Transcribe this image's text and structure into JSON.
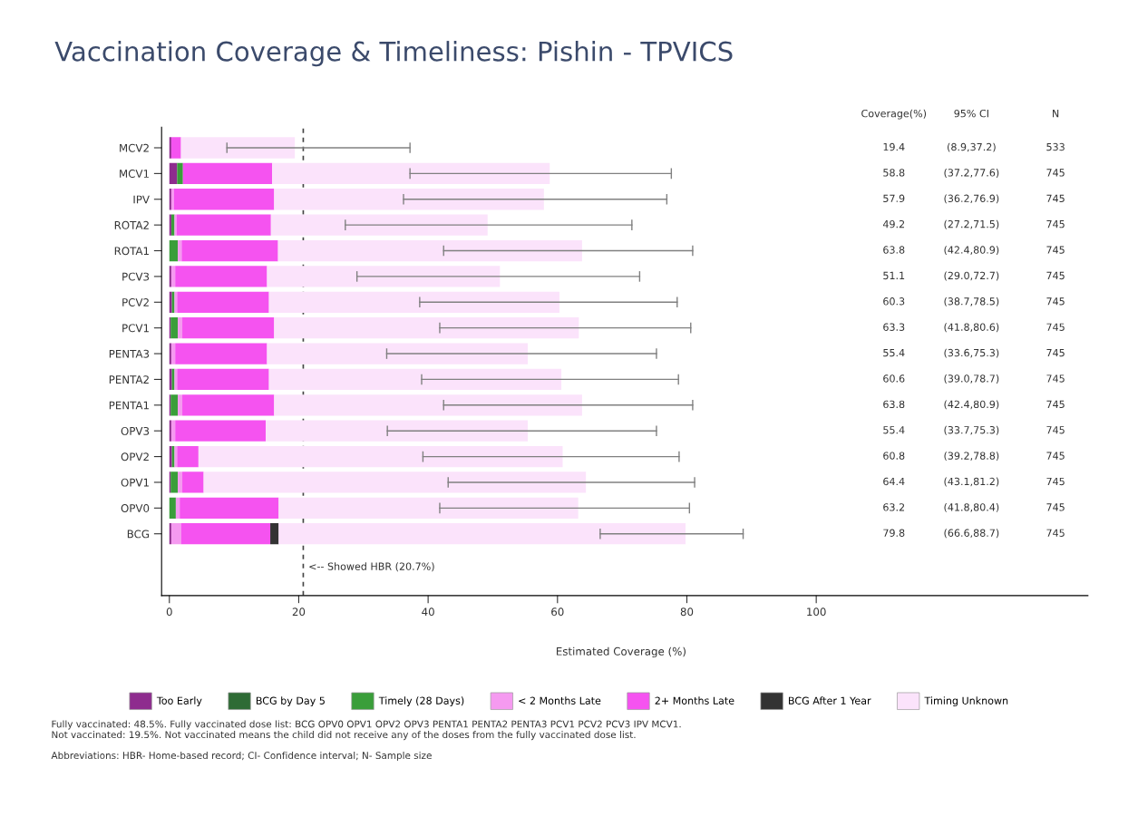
{
  "chart_data": {
    "type": "bar",
    "orientation": "horizontal",
    "stacked": true,
    "title": "Vaccination Coverage & Timeliness: Pishin - TPVICS",
    "xlabel": "Estimated Coverage (%)",
    "categories": [
      "MCV2",
      "MCV1",
      "IPV",
      "ROTA2",
      "ROTA1",
      "PCV3",
      "PCV2",
      "PCV1",
      "PENTA3",
      "PENTA2",
      "PENTA1",
      "OPV3",
      "OPV2",
      "OPV1",
      "OPV0",
      "BCG"
    ],
    "series": [
      {
        "name": "Too Early",
        "color": "#8e2c8e",
        "values": [
          0.3,
          1.2,
          0.3,
          0.3,
          0,
          0.3,
          0.4,
          0.2,
          0.3,
          0.4,
          0.2,
          0.3,
          0.4,
          0.2,
          0,
          0.3
        ]
      },
      {
        "name": "BCG by Day 5",
        "color": "#2e6b35",
        "values": [
          0,
          0,
          0,
          0,
          0,
          0,
          0,
          0,
          0,
          0,
          0,
          0,
          0,
          0,
          0,
          0
        ]
      },
      {
        "name": "Timely (28 Days)",
        "color": "#3a9e3a",
        "values": [
          0,
          0.9,
          0,
          0.5,
          1.3,
          0,
          0.4,
          1.1,
          0,
          0.4,
          1.1,
          0,
          0.4,
          1.1,
          1.0,
          0
        ]
      },
      {
        "name": "< 2 Months Late",
        "color": "#f59af0",
        "values": [
          0,
          0,
          0.4,
          0.3,
          0.6,
          0.6,
          0.4,
          0.7,
          0.6,
          0.4,
          0.7,
          0.6,
          0.4,
          0.7,
          0.6,
          1.5
        ]
      },
      {
        "name": "2+ Months Late",
        "color": "#f553f0",
        "values": [
          1.5,
          13.8,
          15.5,
          14.6,
          14.9,
          14.2,
          14.2,
          14.2,
          14.2,
          14.2,
          14.2,
          14.0,
          3.3,
          3.3,
          15.3,
          13.8
        ]
      },
      {
        "name": "BCG After 1 Year",
        "color": "#333333",
        "values": [
          0,
          0,
          0,
          0,
          0,
          0,
          0,
          0,
          0,
          0,
          0,
          0,
          0,
          0,
          0,
          1.3
        ]
      },
      {
        "name": "Timing Unknown",
        "color": "#fbe3fb",
        "values": [
          17.6,
          42.9,
          41.7,
          33.5,
          47.0,
          36.0,
          44.9,
          47.1,
          40.3,
          45.2,
          47.6,
          40.5,
          56.3,
          59.1,
          46.3,
          62.9
        ],
        "errors": [
          [
            8.9,
            37.2
          ],
          [
            37.2,
            77.6
          ],
          [
            36.2,
            76.9
          ],
          [
            27.2,
            71.5
          ],
          [
            42.4,
            80.9
          ],
          [
            29.0,
            72.7
          ],
          [
            38.7,
            78.5
          ],
          [
            41.8,
            80.6
          ],
          [
            33.6,
            75.3
          ],
          [
            39.0,
            78.7
          ],
          [
            42.4,
            80.9
          ],
          [
            33.7,
            75.3
          ],
          [
            39.2,
            78.8
          ],
          [
            43.1,
            81.2
          ],
          [
            41.8,
            80.4
          ],
          [
            66.6,
            88.7
          ]
        ]
      }
    ],
    "xlim": [
      -1.2,
      142
    ],
    "xticks": [
      0,
      20,
      40,
      60,
      80,
      100
    ],
    "grid": false,
    "legend": "bottom",
    "ref_lines": [
      {
        "axis": "x",
        "value": 20.7,
        "label": "<-- Showed HBR (20.7%)",
        "color": "#444444",
        "line_style": "dashed"
      }
    ],
    "annotations": [
      "Coverage(%)",
      "95% CI",
      "N",
      "19.4",
      "58.8",
      "57.9",
      "49.2",
      "63.8",
      "51.1",
      "60.3",
      "63.3",
      "55.4",
      "60.6",
      "63.8",
      "55.4",
      "60.8",
      "64.4",
      "63.2",
      "79.8",
      "(8.9,37.2)",
      "(37.2,77.6)",
      "(36.2,76.9)",
      "(27.2,71.5)",
      "(42.4,80.9)",
      "(29.0,72.7)",
      "(38.7,78.5)",
      "(41.8,80.6)",
      "(33.6,75.3)",
      "(39.0,78.7)",
      "(42.4,80.9)",
      "(33.7,75.3)",
      "(39.2,78.8)",
      "(43.1,81.2)",
      "(41.8,80.4)",
      "(66.6,88.7)",
      "533",
      "745",
      "745",
      "745",
      "745",
      "745",
      "745",
      "745",
      "745",
      "745",
      "745",
      "745",
      "745",
      "745",
      "745",
      "745",
      "Fully vaccinated: 48.5%. Fully vaccinated dose list: BCG OPV0 OPV1 OPV2 OPV3 PENTA1 PENTA2 PENTA3 PCV1 PCV2 PCV3 IPV MCV1.\nNot vaccinated: 19.5%. Not vaccinated means the child did not receive any of the doses from the fully vaccinated dose list.",
      "Abbreviations: HBR- Home-based record; CI- Confidence interval; N- Sample size"
    ]
  }
}
